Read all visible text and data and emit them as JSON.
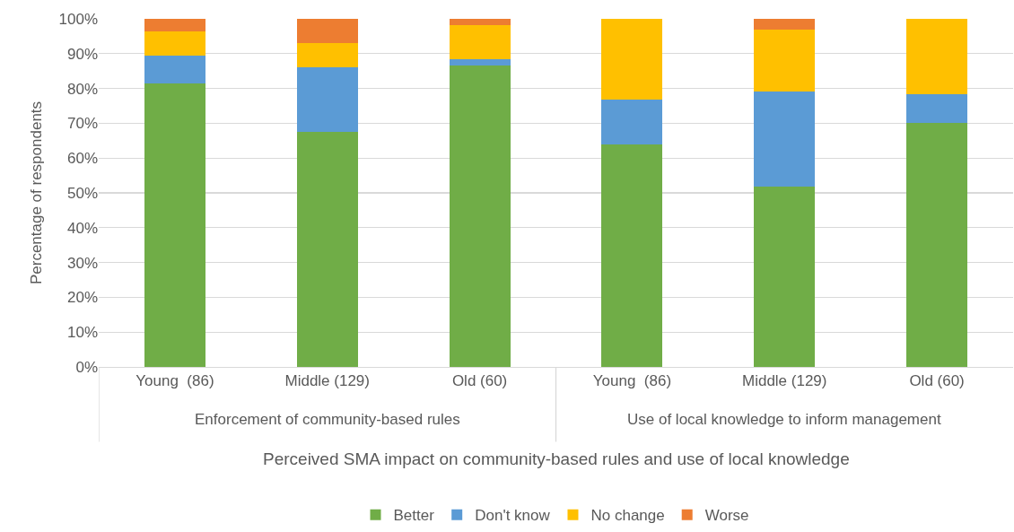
{
  "chart_data": {
    "type": "bar",
    "stacked": true,
    "ylabel": "Percentage of respondents",
    "xlabel": "Perceived SMA impact on community-based rules and use of local knowledge",
    "categories": [
      "Young  (86)",
      "Middle (129)",
      "Old (60)",
      "Young  (86)",
      "Middle (129)",
      "Old (60)"
    ],
    "annotations": [
      "Enforcement of community-based rules",
      "Use of local knowledge to inform management"
    ],
    "series": [
      {
        "name": "Better",
        "color": "#70ad47",
        "values": [
          81.4,
          67.4,
          86.7,
          64.0,
          51.9,
          70.0
        ]
      },
      {
        "name": "Don't know",
        "color": "#5b9bd5",
        "values": [
          8.1,
          18.6,
          1.6,
          12.8,
          27.1,
          8.3
        ]
      },
      {
        "name": "No change",
        "color": "#ffc000",
        "values": [
          7.0,
          7.0,
          10.0,
          23.2,
          17.9,
          21.7
        ]
      },
      {
        "name": "Worse",
        "color": "#ed7d31",
        "values": [
          3.5,
          7.0,
          1.7,
          0,
          3.1,
          0
        ]
      }
    ],
    "ylim": [
      0,
      100
    ],
    "yticks": [
      {
        "value": 0,
        "label": "0%"
      },
      {
        "value": 10,
        "label": "10%"
      },
      {
        "value": 20,
        "label": "20%"
      },
      {
        "value": 30,
        "label": "30%"
      },
      {
        "value": 40,
        "label": "40%"
      },
      {
        "value": 50,
        "label": "50%"
      },
      {
        "value": 60,
        "label": "60%"
      },
      {
        "value": 70,
        "label": "70%"
      },
      {
        "value": 80,
        "label": "80%"
      },
      {
        "value": 90,
        "label": "90%"
      },
      {
        "value": 100,
        "label": "100%"
      }
    ],
    "grid": "y",
    "legend": "bottom"
  }
}
